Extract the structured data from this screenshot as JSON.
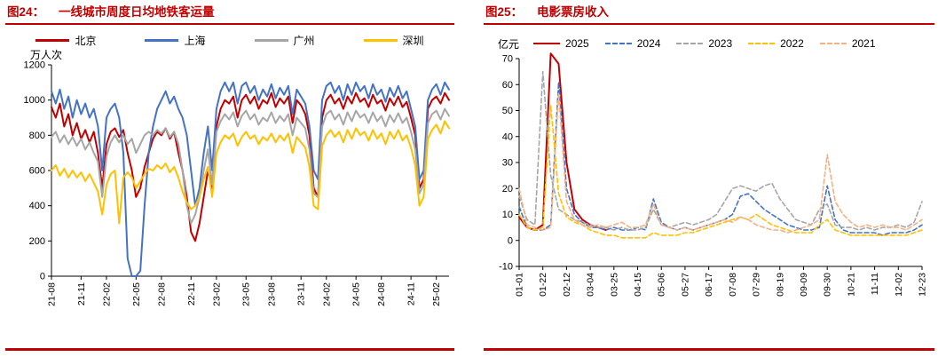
{
  "page": {
    "background": "#ffffff",
    "accent_red": "#C00000"
  },
  "panels": [
    {
      "header": {
        "tag": "图24：",
        "title": "一线城市周度日均地铁客运量"
      },
      "y_unit": "万人次"
    },
    {
      "header": {
        "tag": "图25：",
        "title": "电影票房收入"
      },
      "y_unit": "亿元"
    }
  ],
  "chart_data": [
    {
      "type": "line",
      "title": "一线城市周度日均地铁客运量",
      "ylabel": "万人次",
      "ylim": [
        0,
        1200
      ],
      "yticks": [
        0,
        200,
        400,
        600,
        800,
        1000,
        1200
      ],
      "grid": false,
      "legend_position": "top",
      "x_tick_labels": [
        "21-08",
        "21-11",
        "22-02",
        "22-05",
        "22-08",
        "22-11",
        "23-02",
        "23-05",
        "23-08",
        "23-11",
        "24-02",
        "24-05",
        "24-08",
        "24-11",
        "25-02"
      ],
      "x_tick_positions": [
        0,
        7,
        13,
        20,
        26,
        33,
        39,
        46,
        52,
        59,
        65,
        72,
        78,
        85,
        91
      ],
      "series": [
        {
          "name": "北京",
          "color": "#C00000",
          "dash": null,
          "values": [
            960,
            900,
            980,
            850,
            920,
            800,
            870,
            780,
            830,
            760,
            820,
            700,
            500,
            750,
            820,
            840,
            790,
            830,
            700,
            600,
            450,
            500,
            620,
            700,
            780,
            820,
            800,
            840,
            780,
            820,
            700,
            600,
            450,
            250,
            200,
            300,
            450,
            600,
            500,
            850,
            950,
            1000,
            980,
            1020,
            900,
            1000,
            1030,
            980,
            1020,
            950,
            1000,
            980,
            1040,
            960,
            1010,
            980,
            1020,
            870,
            1000,
            970,
            920,
            800,
            500,
            450,
            900,
            1000,
            1030,
            980,
            1010,
            950,
            1020,
            980,
            1040,
            990,
            1010,
            960,
            1030,
            980,
            1000,
            940,
            1010,
            970,
            1020,
            960,
            990,
            900,
            800,
            500,
            550,
            950,
            1000,
            1020,
            980,
            1040,
            1000
          ]
        },
        {
          "name": "上海",
          "color": "#4472C4",
          "dash": null,
          "values": [
            1050,
            980,
            1060,
            950,
            1020,
            900,
            1000,
            920,
            980,
            900,
            950,
            850,
            600,
            900,
            950,
            980,
            900,
            700,
            100,
            0,
            0,
            30,
            400,
            700,
            850,
            950,
            1000,
            1050,
            980,
            1020,
            950,
            900,
            800,
            600,
            400,
            500,
            700,
            850,
            600,
            950,
            1050,
            1100,
            1050,
            1100,
            980,
            1080,
            1100,
            1040,
            1080,
            1000,
            1060,
            1020,
            1090,
            1010,
            1070,
            1030,
            1080,
            920,
            1060,
            1020,
            980,
            850,
            600,
            550,
            1000,
            1080,
            1100,
            1040,
            1080,
            1000,
            1090,
            1030,
            1100,
            1050,
            1080,
            1010,
            1090,
            1030,
            1060,
            990,
            1070,
            1020,
            1080,
            1010,
            1050,
            950,
            850,
            550,
            600,
            1000,
            1060,
            1090,
            1030,
            1100,
            1060
          ]
        },
        {
          "name": "广州",
          "color": "#A6A6A6",
          "dash": null,
          "values": [
            790,
            820,
            760,
            800,
            750,
            790,
            740,
            780,
            720,
            760,
            700,
            650,
            450,
            680,
            760,
            800,
            760,
            800,
            750,
            780,
            700,
            750,
            800,
            820,
            800,
            830,
            810,
            840,
            790,
            820,
            750,
            600,
            400,
            300,
            350,
            450,
            600,
            720,
            520,
            820,
            880,
            920,
            890,
            930,
            850,
            910,
            940,
            890,
            920,
            860,
            900,
            880,
            930,
            870,
            910,
            880,
            920,
            800,
            900,
            870,
            840,
            720,
            470,
            450,
            850,
            920,
            940,
            890,
            920,
            860,
            930,
            880,
            940,
            900,
            920,
            870,
            930,
            880,
            910,
            850,
            915,
            875,
            925,
            870,
            900,
            820,
            720,
            470,
            520,
            870,
            920,
            940,
            890,
            950,
            910
          ]
        },
        {
          "name": "深圳",
          "color": "#FFC000",
          "dash": null,
          "values": [
            600,
            630,
            570,
            610,
            560,
            600,
            560,
            590,
            540,
            580,
            530,
            480,
            350,
            520,
            580,
            600,
            300,
            560,
            590,
            560,
            500,
            540,
            580,
            610,
            600,
            630,
            610,
            640,
            590,
            620,
            560,
            480,
            420,
            380,
            400,
            450,
            550,
            620,
            450,
            700,
            760,
            800,
            780,
            810,
            740,
            790,
            820,
            780,
            800,
            750,
            790,
            770,
            810,
            760,
            800,
            770,
            810,
            700,
            790,
            760,
            730,
            620,
            400,
            380,
            740,
            800,
            830,
            790,
            820,
            760,
            830,
            780,
            840,
            800,
            820,
            770,
            830,
            780,
            810,
            750,
            820,
            780,
            830,
            770,
            800,
            730,
            630,
            400,
            450,
            780,
            830,
            860,
            810,
            880,
            840
          ]
        }
      ]
    },
    {
      "type": "line",
      "title": "电影票房收入",
      "ylabel": "亿元",
      "ylim": [
        -10,
        70
      ],
      "yticks": [
        -10,
        0,
        10,
        20,
        30,
        40,
        50,
        60,
        70
      ],
      "grid": false,
      "legend_position": "top",
      "x_tick_labels": [
        "01-01",
        "01-22",
        "02-12",
        "03-04",
        "03-25",
        "04-15",
        "05-06",
        "05-27",
        "06-17",
        "07-08",
        "07-29",
        "08-19",
        "09-09",
        "09-30",
        "10-21",
        "11-11",
        "12-02",
        "12-23"
      ],
      "x_tick_positions": [
        0,
        3,
        6,
        9,
        12,
        15,
        18,
        21,
        24,
        27,
        30,
        33,
        36,
        39,
        42,
        45,
        48,
        51
      ],
      "series": [
        {
          "name": "2025",
          "color": "#C00000",
          "dash": null,
          "values": [
            9,
            5,
            4,
            6,
            72,
            68,
            30,
            12,
            8,
            6,
            5,
            4,
            null,
            null,
            null,
            null,
            null,
            null,
            null,
            null,
            null,
            null,
            null,
            null,
            null,
            null,
            null,
            null,
            null,
            null,
            null,
            null,
            null,
            null,
            null,
            null,
            null,
            null,
            null,
            null,
            null,
            null,
            null,
            null,
            null,
            null,
            null,
            null,
            null,
            null,
            null,
            null
          ]
        },
        {
          "name": "2024",
          "color": "#4472C4",
          "dash": [
            5,
            3
          ],
          "values": [
            13,
            5,
            4,
            4,
            6,
            61,
            20,
            10,
            7,
            5,
            5,
            4,
            5,
            4,
            4,
            5,
            4,
            16,
            7,
            5,
            4,
            5,
            4,
            5,
            6,
            7,
            8,
            10,
            17,
            18,
            15,
            12,
            10,
            8,
            6,
            5,
            4,
            4,
            5,
            21,
            8,
            4,
            3,
            3,
            3,
            3,
            2,
            3,
            3,
            3,
            4,
            6
          ]
        },
        {
          "name": "2023",
          "color": "#A6A6A6",
          "dash": [
            5,
            3
          ],
          "values": [
            17,
            8,
            6,
            65,
            25,
            12,
            10,
            8,
            7,
            6,
            5,
            5,
            4,
            5,
            4,
            4,
            5,
            12,
            6,
            5,
            6,
            7,
            6,
            7,
            8,
            10,
            15,
            20,
            21,
            20,
            19,
            21,
            22,
            16,
            12,
            8,
            7,
            6,
            12,
            14,
            6,
            5,
            5,
            4,
            5,
            4,
            5,
            5,
            6,
            5,
            7,
            15
          ]
        },
        {
          "name": "2022",
          "color": "#FFC000",
          "dash": [
            5,
            3
          ],
          "values": [
            10,
            5,
            4,
            5,
            52,
            18,
            9,
            7,
            6,
            4,
            3,
            2,
            2,
            1,
            1,
            1,
            1,
            3,
            2,
            2,
            2,
            3,
            3,
            4,
            5,
            6,
            7,
            8,
            9,
            8,
            10,
            8,
            6,
            5,
            4,
            3,
            3,
            3,
            6,
            8,
            4,
            3,
            2,
            2,
            2,
            2,
            2,
            2,
            2,
            2,
            3,
            4
          ]
        },
        {
          "name": "2021",
          "color": "#F4B183",
          "dash": [
            5,
            3
          ],
          "values": [
            20,
            6,
            5,
            4,
            5,
            57,
            15,
            8,
            6,
            5,
            6,
            5,
            6,
            7,
            5,
            5,
            6,
            14,
            6,
            5,
            4,
            5,
            4,
            5,
            6,
            7,
            8,
            7,
            9,
            8,
            6,
            5,
            4,
            4,
            3,
            4,
            5,
            6,
            8,
            33,
            15,
            10,
            7,
            5,
            6,
            5,
            6,
            5,
            5,
            4,
            6,
            8
          ]
        }
      ]
    }
  ]
}
